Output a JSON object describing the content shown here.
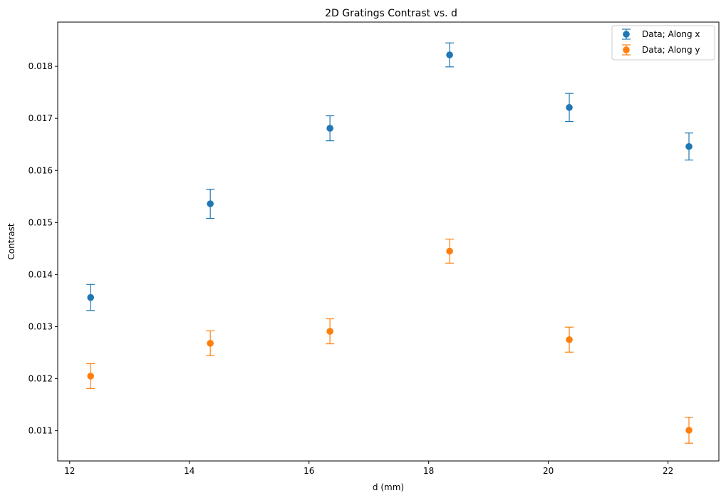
{
  "chart_data": {
    "type": "scatter",
    "title": "2D Gratings Contrast vs. d",
    "xlabel": "d (mm)",
    "ylabel": "Contrast",
    "xlim": [
      11.8,
      22.85
    ],
    "ylim": [
      0.01042,
      0.01885
    ],
    "xticks": [
      12,
      14,
      16,
      18,
      20,
      22
    ],
    "yticks": [
      0.011,
      0.012,
      0.013,
      0.014,
      0.015,
      0.016,
      0.017,
      0.018
    ],
    "xtick_labels": [
      "12",
      "14",
      "16",
      "18",
      "20",
      "22"
    ],
    "ytick_labels": [
      "0.011",
      "0.012",
      "0.013",
      "0.014",
      "0.015",
      "0.016",
      "0.017",
      "0.018"
    ],
    "grid": false,
    "legend_position": "top-right",
    "series": [
      {
        "name": "Data; Along x",
        "color": "#1f77b4",
        "marker": "circle",
        "error_bars": true,
        "x": [
          12.35,
          14.35,
          16.35,
          18.35,
          20.35,
          22.35
        ],
        "y": [
          0.01356,
          0.01536,
          0.01681,
          0.01822,
          0.01721,
          0.01646
        ],
        "yerr": [
          0.00025,
          0.00028,
          0.00024,
          0.00023,
          0.00027,
          0.00026
        ]
      },
      {
        "name": "Data; Along y",
        "color": "#ff7f0e",
        "marker": "circle",
        "error_bars": true,
        "x": [
          12.35,
          14.35,
          16.35,
          18.35,
          20.35,
          22.35
        ],
        "y": [
          0.01205,
          0.01268,
          0.01291,
          0.01445,
          0.01275,
          0.01101
        ],
        "yerr": [
          0.00024,
          0.00024,
          0.00024,
          0.00023,
          0.00024,
          0.00025
        ]
      }
    ]
  }
}
